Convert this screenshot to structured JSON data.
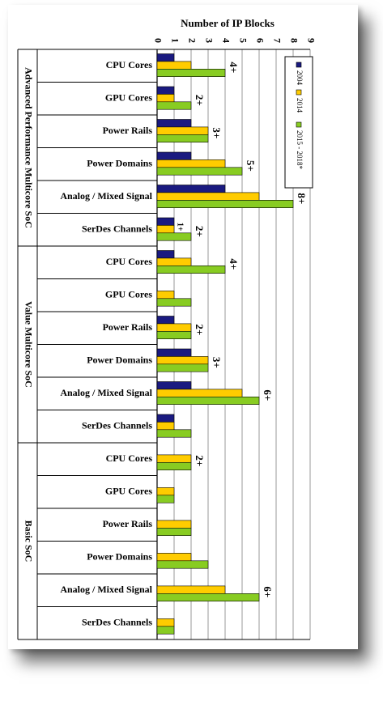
{
  "chart_data": {
    "type": "bar",
    "orientation": "horizontal",
    "xlabel": "Number of IP Blocks",
    "xlim": [
      0,
      9
    ],
    "xticks": [
      "0",
      "1",
      "2",
      "3",
      "4",
      "5",
      "6",
      "7",
      "8",
      "9"
    ],
    "grid": true,
    "legend_position": "top-right",
    "colors": {
      "2004": "#1a1a80",
      "2014": "#ffcc00",
      "2015 - 2018*": "#88cc22",
      "grid": "#999999"
    },
    "series": [
      {
        "name": "2004"
      },
      {
        "name": "2014"
      },
      {
        "name": "2015 - 2018*"
      }
    ],
    "groups": [
      {
        "name": "Advanced Performance Multicore SoC",
        "rows": [
          {
            "label": "CPU Cores",
            "values": [
              1,
              2,
              4
            ],
            "annotation": "4+"
          },
          {
            "label": "GPU Cores",
            "values": [
              1,
              1,
              2
            ],
            "annotation": "2+"
          },
          {
            "label": "Power Rails",
            "values": [
              2,
              3,
              3
            ],
            "annotation": "3+"
          },
          {
            "label": "Power Domains",
            "values": [
              2,
              4,
              5
            ],
            "annotation": "5+"
          },
          {
            "label": "Analog / Mixed Signal",
            "values": [
              4,
              6,
              8
            ],
            "annotation": "8+"
          },
          {
            "label": "SerDes Channels",
            "values": [
              1,
              1,
              2
            ],
            "annotation": "2+",
            "annotation2": "1+"
          }
        ]
      },
      {
        "name": "Value Multicore SoC",
        "rows": [
          {
            "label": "CPU Cores",
            "values": [
              1,
              2,
              4
            ],
            "annotation": "4+"
          },
          {
            "label": "GPU Cores",
            "values": [
              0,
              1,
              2
            ],
            "annotation": ""
          },
          {
            "label": "Power Rails",
            "values": [
              1,
              2,
              2
            ],
            "annotation": "2+"
          },
          {
            "label": "Power Domains",
            "values": [
              2,
              3,
              3
            ],
            "annotation": "3+"
          },
          {
            "label": "Analog / Mixed Signal",
            "values": [
              2,
              5,
              6
            ],
            "annotation": "6+"
          },
          {
            "label": "SerDes Channels",
            "values": [
              1,
              1,
              2
            ],
            "annotation": ""
          }
        ]
      },
      {
        "name": "Basic SoC",
        "rows": [
          {
            "label": "CPU Cores",
            "values": [
              0,
              2,
              2
            ],
            "annotation": "2+"
          },
          {
            "label": "GPU Cores",
            "values": [
              0,
              1,
              1
            ],
            "annotation": ""
          },
          {
            "label": "Power Rails",
            "values": [
              0,
              2,
              2
            ],
            "annotation": ""
          },
          {
            "label": "Power Domains",
            "values": [
              0,
              2,
              3
            ],
            "annotation": ""
          },
          {
            "label": "Analog / Mixed Signal",
            "values": [
              0,
              4,
              6
            ],
            "annotation": "6+"
          },
          {
            "label": "SerDes Channels",
            "values": [
              0,
              1,
              1
            ],
            "annotation": ""
          }
        ]
      }
    ]
  }
}
